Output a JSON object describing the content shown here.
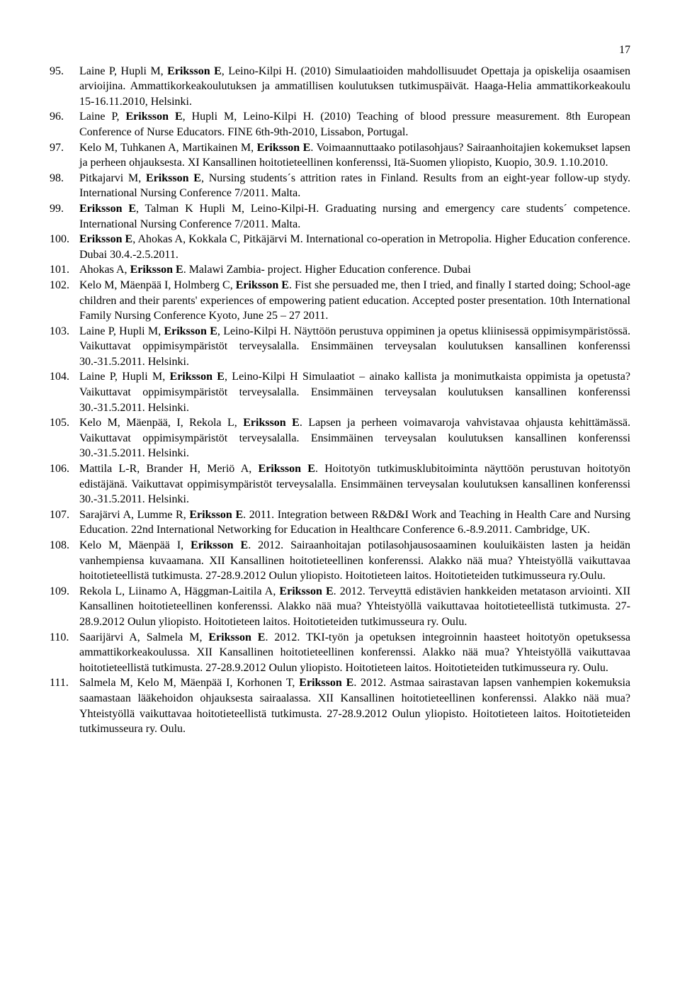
{
  "page_number": "17",
  "entries": [
    {
      "num": "95.",
      "segments": [
        {
          "t": "Laine P, Hupli M, "
        },
        {
          "t": "Eriksson E",
          "b": true
        },
        {
          "t": ", Leino-Kilpi H. (2010) Simulaatioiden mahdollisuudet Opettaja ja opiskelija osaamisen arvioijina. Ammattikorkeakoulutuksen ja ammatillisen koulutuksen tutkimuspäivät. Haaga-Helia ammattikorkeakoulu 15-16.11.2010, Helsinki."
        }
      ]
    },
    {
      "num": "96.",
      "segments": [
        {
          "t": "Laine P, "
        },
        {
          "t": "Eriksson E",
          "b": true
        },
        {
          "t": ", Hupli M, Leino-Kilpi H. (2010) Teaching of blood pressure measurement. 8th European Conference of Nurse Educators. FINE 6th-9th-2010, Lissabon, Portugal."
        }
      ]
    },
    {
      "num": "97.",
      "segments": [
        {
          "t": "Kelo M, Tuhkanen A, Martikainen M, "
        },
        {
          "t": "Eriksson E",
          "b": true
        },
        {
          "t": ". Voimaannuttaako potilasohjaus? Sairaanhoitajien kokemukset lapsen ja perheen ohjauksesta. XI Kansallinen hoitotieteellinen konferenssi, Itä-Suomen yliopisto, Kuopio, 30.9. 1.10.2010."
        }
      ]
    },
    {
      "num": "98.",
      "segments": [
        {
          "t": "Pitkajarvi M, "
        },
        {
          "t": "Eriksson E",
          "b": true
        },
        {
          "t": ", Nursing students´s attrition rates in Finland. Results from an eight-year follow-up stydy. International Nursing Conference 7/2011. Malta."
        }
      ]
    },
    {
      "num": "99.",
      "segments": [
        {
          "t": "Eriksson E",
          "b": true
        },
        {
          "t": ", Talman K Hupli M, Leino-Kilpi-H. Graduating nursing and emergency care students´ competence. International Nursing Conference 7/2011. Malta."
        }
      ]
    },
    {
      "num": "100.",
      "segments": [
        {
          "t": "Eriksson E",
          "b": true
        },
        {
          "t": ", Ahokas A, Kokkala C, Pitkäjärvi M. International co-operation in Metropolia. Higher Education conference. Dubai 30.4.-2.5.2011."
        }
      ]
    },
    {
      "num": "101.",
      "segments": [
        {
          "t": "Ahokas A, "
        },
        {
          "t": "Eriksson E",
          "b": true
        },
        {
          "t": ". Malawi Zambia- project. Higher Education conference. Dubai"
        }
      ]
    },
    {
      "num": "102.",
      "segments": [
        {
          "t": "Kelo M, Mäenpää I, Holmberg C, "
        },
        {
          "t": "Eriksson E",
          "b": true
        },
        {
          "t": ". Fist she persuaded me, then I tried, and finally I started doing; School-age children and their parents' experiences of empowering patient education. Accepted poster presentation. 10th International Family Nursing Conference Kyoto, June 25 – 27 2011."
        }
      ]
    },
    {
      "num": "103.",
      "segments": [
        {
          "t": "Laine P, Hupli M, "
        },
        {
          "t": "Eriksson E",
          "b": true
        },
        {
          "t": ", Leino-Kilpi H. Näyttöön perustuva oppiminen ja opetus kliinisessä oppimisympäristössä. Vaikuttavat oppimisympäristöt terveysalalla.  Ensimmäinen terveysalan koulutuksen kansallinen konferenssi 30.-31.5.2011. Helsinki."
        }
      ]
    },
    {
      "num": "104.",
      "segments": [
        {
          "t": "Laine P, Hupli M, "
        },
        {
          "t": "Eriksson E",
          "b": true
        },
        {
          "t": ", Leino-Kilpi H Simulaatiot – ainako kallista ja monimutkaista oppimista ja opetusta? Vaikuttavat oppimisympäristöt terveysalalla. Ensimmäinen terveysalan koulutuksen kansallinen konferenssi 30.-31.5.2011. Helsinki."
        }
      ]
    },
    {
      "num": "105.",
      "segments": [
        {
          "t": "Kelo M, Mäenpää, I, Rekola L, "
        },
        {
          "t": "Eriksson E",
          "b": true
        },
        {
          "t": ". Lapsen ja perheen voimavaroja vahvistavaa ohjausta kehittämässä. Vaikuttavat oppimisympäristöt terveysalalla. Ensimmäinen terveysalan koulutuksen kansallinen konferenssi 30.-31.5.2011. Helsinki."
        }
      ]
    },
    {
      "num": "106.",
      "segments": [
        {
          "t": "Mattila L-R, Brander H, Meriö A, "
        },
        {
          "t": "Eriksson E",
          "b": true
        },
        {
          "t": ". Hoitotyön tutkimusklubitoiminta näyttöön perustuvan hoitotyön edistäjänä. Vaikuttavat oppimisympäristöt terveysalalla. Ensimmäinen terveysalan koulutuksen kansallinen konferenssi 30.-31.5.2011. Helsinki."
        }
      ]
    },
    {
      "num": "107.",
      "segments": [
        {
          "t": " Sarajärvi A, Lumme R, "
        },
        {
          "t": "Eriksson E",
          "b": true
        },
        {
          "t": ". 2011. Integration between R&D&I Work and Teaching in Health Care and Nursing Education. 22nd International Networking for Education in Healthcare Conference 6.-8.9.2011. Cambridge, UK."
        }
      ]
    },
    {
      "num": "108.",
      "segments": [
        {
          "t": "Kelo M, Mäenpää I, "
        },
        {
          "t": "Eriksson E",
          "b": true
        },
        {
          "t": ". 2012. Sairaanhoitajan potilasohjausosaaminen kouluikäisten lasten ja heidän vanhempiensa kuvaamana. XII Kansallinen hoitotieteellinen konferenssi. Alakko nää mua? Yhteistyöllä vaikuttavaa hoitotieteellistä tutkimusta. 27-28.9.2012 Oulun yliopisto. Hoitotieteen laitos. Hoitotieteiden tutkimusseura ry.Oulu."
        }
      ]
    },
    {
      "num": "109.",
      "segments": [
        {
          "t": "Rekola L, Liinamo A, Häggman-Laitila A, "
        },
        {
          "t": "Eriksson E",
          "b": true
        },
        {
          "t": ". 2012. Terveyttä edistävien hankkeiden metatason arviointi. XII Kansallinen hoitotieteellinen konferenssi. Alakko nää mua? Yhteistyöllä vaikuttavaa hoitotieteellistä tutkimusta. 27-28.9.2012 Oulun yliopisto. Hoitotieteen laitos. Hoitotieteiden tutkimusseura ry. Oulu."
        }
      ]
    },
    {
      "num": "110.",
      "segments": [
        {
          "t": "Saarijärvi A, Salmela M, "
        },
        {
          "t": "Eriksson E",
          "b": true
        },
        {
          "t": ". 2012. TKI-työn ja opetuksen integroinnin haasteet hoitotyön opetuksessa ammattikorkeakoulussa. XII Kansallinen hoitotieteellinen konferenssi. Alakko nää mua? Yhteistyöllä vaikuttavaa hoitotieteellistä tutkimusta. 27-28.9.2012 Oulun yliopisto. Hoitotieteen laitos. Hoitotieteiden tutkimusseura ry. Oulu."
        }
      ]
    },
    {
      "num": "111.",
      "segments": [
        {
          "t": "Salmela M, Kelo M, Mäenpää I, Korhonen T, "
        },
        {
          "t": "Eriksson E",
          "b": true
        },
        {
          "t": ". 2012. Astmaa sairastavan lapsen vanhempien kokemuksia saamastaan lääkehoidon ohjauksesta sairaalassa. XII Kansallinen hoitotieteellinen konferenssi. Alakko nää mua? Yhteistyöllä vaikuttavaa hoitotieteellistä tutkimusta. 27-28.9.2012 Oulun yliopisto. Hoitotieteen laitos. Hoitotieteiden tutkimusseura ry. Oulu."
        }
      ]
    }
  ]
}
